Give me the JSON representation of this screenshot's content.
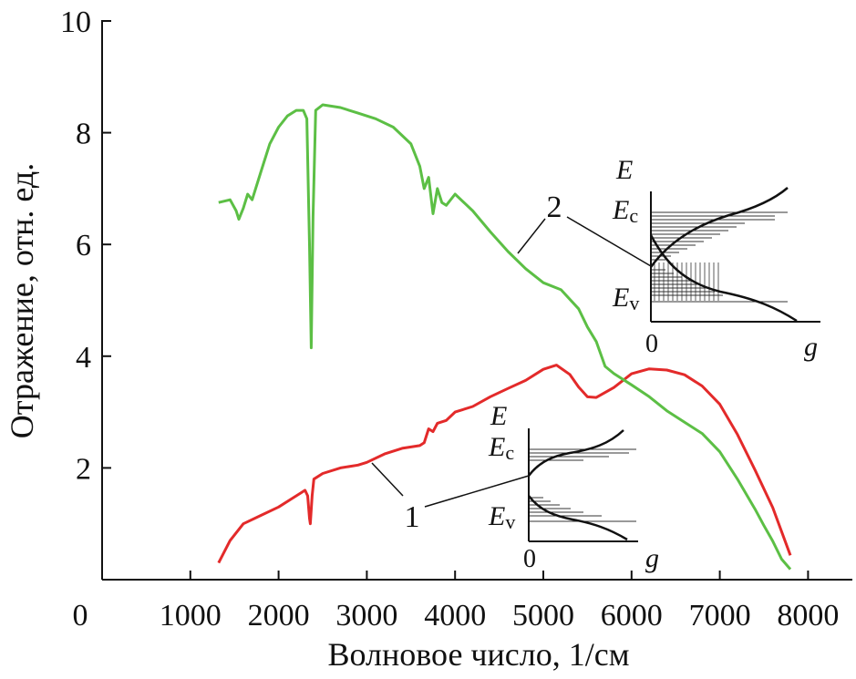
{
  "chart_data": {
    "type": "line",
    "xlabel": "Волновое число, 1/см",
    "ylabel": "Отражение, отн. ед.",
    "xlim": [
      0,
      8500
    ],
    "ylim": [
      0,
      10
    ],
    "x_ticks": [
      "0",
      "1000",
      "2000",
      "3000",
      "4000",
      "5000",
      "6000",
      "7000",
      "8000"
    ],
    "y_ticks": [
      "2",
      "4",
      "6",
      "8",
      "10"
    ],
    "series": [
      {
        "name": "1",
        "color": "#e32a2a",
        "points": [
          [
            1320,
            0.3
          ],
          [
            1450,
            0.7
          ],
          [
            1600,
            1.0
          ],
          [
            1800,
            1.15
          ],
          [
            2000,
            1.3
          ],
          [
            2150,
            1.45
          ],
          [
            2250,
            1.55
          ],
          [
            2300,
            1.6
          ],
          [
            2330,
            1.5
          ],
          [
            2350,
            1.1
          ],
          [
            2360,
            1.0
          ],
          [
            2380,
            1.5
          ],
          [
            2400,
            1.8
          ],
          [
            2500,
            1.9
          ],
          [
            2700,
            2.0
          ],
          [
            2900,
            2.05
          ],
          [
            3000,
            2.1
          ],
          [
            3200,
            2.25
          ],
          [
            3400,
            2.35
          ],
          [
            3600,
            2.4
          ],
          [
            3650,
            2.45
          ],
          [
            3700,
            2.7
          ],
          [
            3750,
            2.65
          ],
          [
            3800,
            2.8
          ],
          [
            3900,
            2.85
          ],
          [
            4000,
            3.0
          ],
          [
            4200,
            3.1
          ],
          [
            4400,
            3.25
          ],
          [
            4600,
            3.45
          ],
          [
            4800,
            3.6
          ],
          [
            5000,
            3.75
          ],
          [
            5150,
            3.8
          ],
          [
            5300,
            3.65
          ],
          [
            5400,
            3.45
          ],
          [
            5500,
            3.3
          ],
          [
            5600,
            3.3
          ],
          [
            5800,
            3.45
          ],
          [
            6000,
            3.65
          ],
          [
            6200,
            3.75
          ],
          [
            6400,
            3.78
          ],
          [
            6600,
            3.7
          ],
          [
            6800,
            3.45
          ],
          [
            7000,
            3.1
          ],
          [
            7200,
            2.6
          ],
          [
            7400,
            2.0
          ],
          [
            7600,
            1.3
          ],
          [
            7800,
            0.4
          ]
        ]
      },
      {
        "name": "2",
        "color": "#5cbf45",
        "points": [
          [
            1320,
            6.75
          ],
          [
            1450,
            6.8
          ],
          [
            1520,
            6.6
          ],
          [
            1550,
            6.45
          ],
          [
            1600,
            6.65
          ],
          [
            1650,
            6.9
          ],
          [
            1700,
            6.8
          ],
          [
            1800,
            7.3
          ],
          [
            1900,
            7.8
          ],
          [
            2000,
            8.1
          ],
          [
            2100,
            8.3
          ],
          [
            2200,
            8.4
          ],
          [
            2280,
            8.4
          ],
          [
            2320,
            8.25
          ],
          [
            2350,
            6.0
          ],
          [
            2370,
            4.15
          ],
          [
            2390,
            6.5
          ],
          [
            2420,
            8.4
          ],
          [
            2500,
            8.5
          ],
          [
            2700,
            8.45
          ],
          [
            2900,
            8.35
          ],
          [
            3100,
            8.25
          ],
          [
            3300,
            8.1
          ],
          [
            3500,
            7.8
          ],
          [
            3600,
            7.4
          ],
          [
            3650,
            7.0
          ],
          [
            3700,
            7.2
          ],
          [
            3750,
            6.55
          ],
          [
            3800,
            7.0
          ],
          [
            3850,
            6.75
          ],
          [
            3900,
            6.7
          ],
          [
            4000,
            6.9
          ],
          [
            4200,
            6.6
          ],
          [
            4400,
            6.2
          ],
          [
            4600,
            5.9
          ],
          [
            4800,
            5.6
          ],
          [
            5000,
            5.3
          ],
          [
            5200,
            5.15
          ],
          [
            5400,
            4.85
          ],
          [
            5500,
            4.55
          ],
          [
            5600,
            4.3
          ],
          [
            5700,
            3.85
          ],
          [
            5800,
            3.7
          ],
          [
            6000,
            3.45
          ],
          [
            6200,
            3.25
          ],
          [
            6400,
            3.05
          ],
          [
            6600,
            2.85
          ],
          [
            6800,
            2.6
          ],
          [
            7000,
            2.25
          ],
          [
            7200,
            1.8
          ],
          [
            7400,
            1.3
          ],
          [
            7500,
            1.0
          ],
          [
            7600,
            0.7
          ],
          [
            7700,
            0.35
          ],
          [
            7800,
            0.15
          ]
        ]
      }
    ],
    "annotations": [
      {
        "text": "1",
        "target": [
          3000,
          2.1
        ]
      },
      {
        "text": "2",
        "target": [
          4700,
          5.7
        ]
      }
    ],
    "insets": [
      {
        "name": "inset-1",
        "y_axis_label": "E",
        "x_axis_label": "g",
        "zero_label": "0",
        "ec_label": "E",
        "ec_sub": "c",
        "ev_label": "E",
        "ev_sub": "v"
      },
      {
        "name": "inset-2",
        "y_axis_label": "E",
        "x_axis_label": "g",
        "zero_label": "0",
        "ec_label": "E",
        "ec_sub": "c",
        "ev_label": "E",
        "ev_sub": "v"
      }
    ]
  }
}
